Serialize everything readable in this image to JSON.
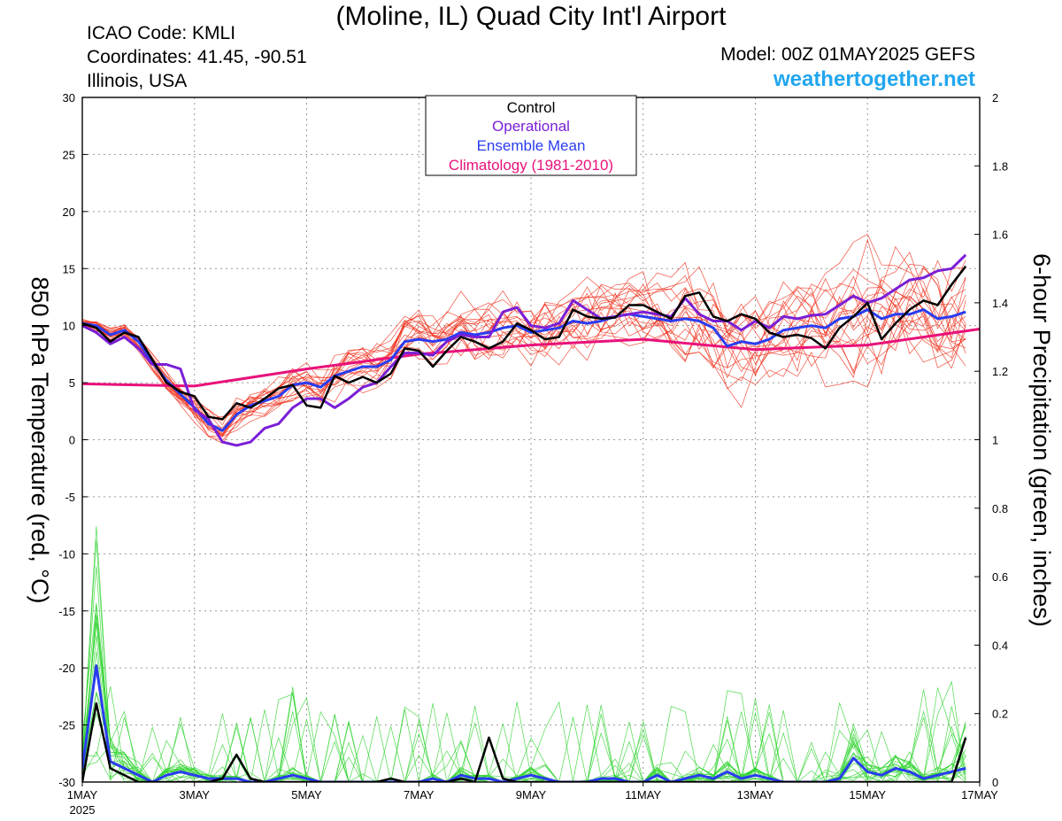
{
  "header": {
    "title": "(Moline, IL) Quad City Int'l Airport",
    "icao": "ICAO Code: KMLI",
    "coordinates": "Coordinates: 41.45, -90.51",
    "region": "Illinois, USA",
    "model": "Model: 00Z 01MAY2025 GEFS",
    "site": "weathertogether.net"
  },
  "legend": {
    "control": "Control",
    "operational": "Operational",
    "ensemble_mean": "Ensemble Mean",
    "climatology": "Climatology (1981-2010)"
  },
  "colors": {
    "control": "#000000",
    "operational": "#7a1fd6",
    "ensemble_mean": "#2a3cf0",
    "climatology": "#e8127a",
    "temp_members": "#f0331f",
    "precip_members": "#2fd42f",
    "website": "#22a6ee"
  },
  "chart_data": {
    "type": "line",
    "title": "(Moline, IL) Quad City Int'l Airport",
    "ylabel": "850 hPa Temperature (red, °C)",
    "y2label": "6-hour Precipitation (green, inches)",
    "ylim": [
      -30,
      30
    ],
    "y2lim": [
      0,
      2
    ],
    "yticks": [
      "30",
      "25",
      "20",
      "15",
      "10",
      "5",
      "0",
      "-5",
      "-10",
      "-15",
      "-20",
      "-25",
      "-30"
    ],
    "y2ticks": [
      "2",
      "1.8",
      "1.6",
      "1.4",
      "1.2",
      "1",
      "0.8",
      "0.6",
      "0.4",
      "0.2",
      "0"
    ],
    "xticks": [
      "1MAY",
      "3MAY",
      "5MAY",
      "7MAY",
      "9MAY",
      "11MAY",
      "13MAY",
      "15MAY",
      "17MAY"
    ],
    "xtick_year": "2025",
    "grid": "dotted",
    "legend_position": "top-center",
    "x_step_hours": 6,
    "temperature": {
      "control": [
        10.2,
        9.8,
        8.6,
        9.4,
        9.0,
        7.0,
        5.0,
        4.2,
        3.8,
        2.0,
        1.8,
        3.2,
        2.8,
        3.6,
        4.5,
        4.8,
        3.0,
        2.8,
        5.6,
        5.0,
        5.5,
        5.0,
        5.8,
        8.0,
        7.8,
        6.4,
        7.8,
        9.0,
        8.6,
        8.0,
        8.6,
        10.2,
        9.6,
        8.8,
        9.0,
        11.4,
        10.8,
        10.6,
        10.7,
        11.8,
        11.8,
        11.2,
        10.6,
        12.6,
        12.9,
        10.8,
        10.4,
        11.0,
        10.6,
        9.4,
        9.0,
        9.2,
        8.9,
        8.0,
        9.8,
        10.8,
        12.0,
        8.8,
        10.2,
        11.4,
        12.2,
        11.8,
        13.6,
        15.2
      ],
      "operational": [
        10.0,
        9.4,
        8.4,
        9.0,
        8.0,
        6.6,
        6.6,
        6.2,
        2.6,
        1.8,
        -0.2,
        -0.5,
        -0.2,
        1.0,
        1.4,
        2.8,
        3.6,
        3.6,
        2.8,
        3.6,
        4.6,
        5.0,
        6.4,
        7.6,
        7.6,
        7.4,
        8.6,
        9.2,
        9.0,
        9.0,
        11.2,
        11.6,
        10.0,
        9.8,
        10.2,
        12.2,
        11.4,
        10.6,
        10.8,
        11.0,
        11.2,
        11.0,
        10.8,
        12.4,
        11.0,
        10.4,
        10.4,
        9.6,
        10.4,
        9.8,
        10.8,
        10.6,
        10.9,
        11.0,
        11.8,
        12.6,
        12.0,
        12.4,
        13.2,
        14.0,
        14.2,
        14.8,
        15.0,
        16.2
      ],
      "ensemble_mean": [
        10.2,
        10.0,
        9.2,
        9.6,
        8.6,
        6.8,
        5.2,
        4.0,
        2.8,
        1.4,
        0.8,
        2.2,
        3.0,
        3.4,
        3.8,
        4.8,
        5.0,
        4.6,
        5.6,
        6.0,
        6.4,
        6.4,
        7.0,
        8.6,
        8.8,
        8.6,
        8.8,
        9.4,
        9.2,
        9.4,
        9.8,
        10.0,
        9.4,
        9.6,
        9.8,
        10.4,
        10.2,
        10.4,
        10.8,
        11.0,
        10.8,
        10.6,
        10.4,
        10.6,
        10.4,
        9.8,
        8.2,
        8.6,
        8.4,
        8.8,
        9.6,
        9.8,
        10.0,
        9.8,
        10.6,
        10.8,
        11.4,
        10.6,
        11.0,
        11.0,
        11.4,
        10.6,
        10.8,
        11.2
      ],
      "climatology_x_hours": [
        0,
        48,
        96,
        144,
        192,
        240,
        288,
        336,
        384
      ],
      "climatology": [
        4.9,
        4.7,
        6.2,
        7.5,
        8.3,
        8.8,
        7.9,
        8.3,
        9.7
      ]
    },
    "precipitation": {
      "control": [
        0.0,
        0.23,
        0.04,
        0.02,
        0.0,
        0.0,
        0.0,
        0.0,
        0.0,
        0.0,
        0.01,
        0.08,
        0.01,
        0.0,
        0.0,
        0.0,
        0.0,
        0.0,
        0.0,
        0.0,
        0.0,
        0.0,
        0.01,
        0.0,
        0.0,
        0.0,
        0.0,
        0.01,
        0.0,
        0.13,
        0.01,
        0.0,
        0.0,
        0.0,
        0.0,
        0.0,
        0.0,
        0.0,
        0.0,
        0.0,
        0.0,
        0.0,
        0.0,
        0.0,
        0.0,
        0.0,
        0.0,
        0.0,
        0.0,
        0.0,
        0.0,
        0.0,
        0.0,
        0.0,
        0.0,
        0.0,
        0.0,
        0.0,
        0.0,
        0.0,
        0.0,
        0.0,
        0.0,
        0.13
      ],
      "ensemble_mean": [
        0.04,
        0.34,
        0.06,
        0.04,
        0.02,
        0.0,
        0.02,
        0.03,
        0.02,
        0.01,
        0.01,
        0.01,
        0.0,
        0.0,
        0.01,
        0.02,
        0.01,
        0.0,
        0.0,
        0.0,
        0.0,
        0.0,
        0.0,
        0.0,
        0.0,
        0.01,
        0.0,
        0.02,
        0.01,
        0.01,
        0.0,
        0.01,
        0.02,
        0.01,
        0.0,
        0.0,
        0.0,
        0.01,
        0.01,
        0.0,
        0.0,
        0.02,
        0.0,
        0.01,
        0.02,
        0.01,
        0.03,
        0.01,
        0.02,
        0.01,
        0.0,
        0.0,
        0.0,
        0.0,
        0.01,
        0.07,
        0.03,
        0.02,
        0.04,
        0.03,
        0.01,
        0.02,
        0.03,
        0.04
      ]
    }
  }
}
